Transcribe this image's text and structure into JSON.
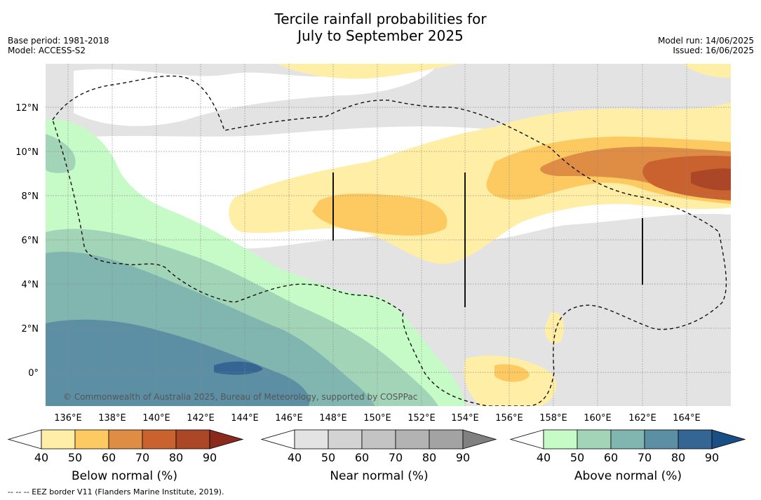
{
  "title_line1": "Tercile rainfall probabilities for",
  "title_line2": "July to September 2025",
  "meta_left": {
    "base_period": "Base period: 1981-2018",
    "model": "Model: ACCESS-S2"
  },
  "meta_right": {
    "model_run": "Model run: 14/06/2025",
    "issued": "Issued: 16/06/2025"
  },
  "map": {
    "lat_labels": [
      "12°N",
      "10°N",
      "8°N",
      "6°N",
      "4°N",
      "2°N",
      "0°"
    ],
    "lon_labels": [
      "136°E",
      "138°E",
      "140°E",
      "142°E",
      "144°E",
      "146°E",
      "148°E",
      "150°E",
      "152°E",
      "154°E",
      "156°E",
      "158°E",
      "160°E",
      "162°E",
      "164°E"
    ],
    "credit": "© Commonwealth of Australia 2025, Bureau of Meteorology, supported by COSPPac"
  },
  "colorbars": [
    {
      "label": "Below normal (%)",
      "ticks": [
        "40",
        "50",
        "60",
        "70",
        "80",
        "90"
      ],
      "colors": [
        "#ffffff",
        "#ffeea6",
        "#fdca62",
        "#df8d45",
        "#c9622f",
        "#ab4627",
        "#8a2a1c"
      ]
    },
    {
      "label": "Near normal (%)",
      "ticks": [
        "40",
        "50",
        "60",
        "70",
        "80",
        "90"
      ],
      "colors": [
        "#ffffff",
        "#e3e3e3",
        "#d3d3d3",
        "#c3c3c3",
        "#b3b3b3",
        "#a3a3a3",
        "#808080"
      ]
    },
    {
      "label": "Above normal (%)",
      "ticks": [
        "40",
        "50",
        "60",
        "70",
        "80",
        "90"
      ],
      "colors": [
        "#ffffff",
        "#c6fbc8",
        "#a2d5b8",
        "#80b6af",
        "#5c8fa4",
        "#356593",
        "#1a4f86"
      ]
    }
  ],
  "footnote": "--  --  -- EEZ border V11 (Flanders Marine Institute, 2019)."
}
